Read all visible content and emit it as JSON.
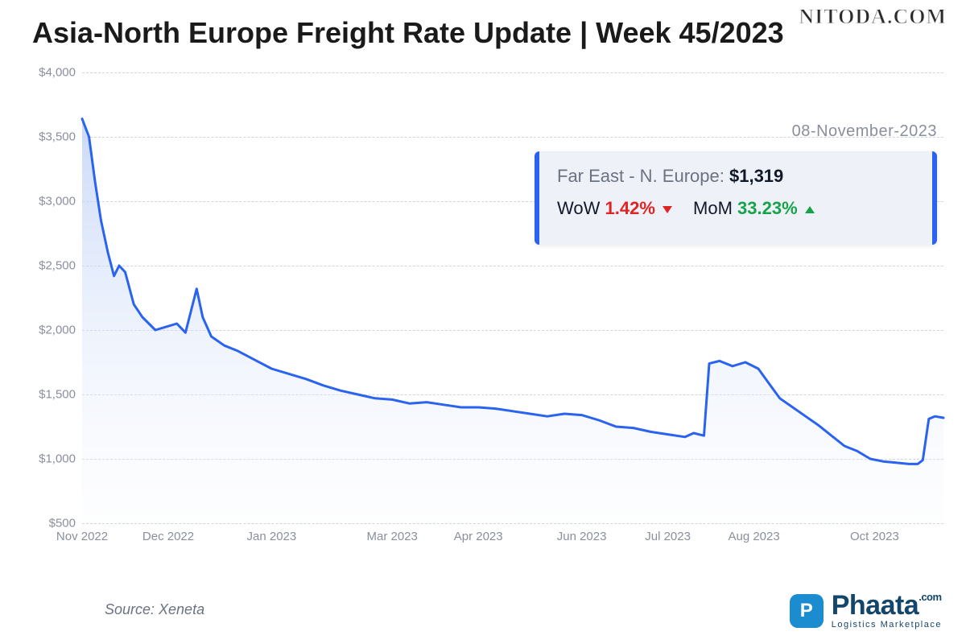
{
  "watermark": "NITODA.COM",
  "title": "Asia-North Europe Freight Rate Update | Week 45/2023",
  "date_label": "08-November-2023",
  "info": {
    "route_label": "Far East - N. Europe:",
    "value": "$1,319",
    "wow_label": "WoW",
    "wow_pct": "1.42%",
    "wow_dir": "down",
    "mom_label": "MoM",
    "mom_pct": "33.23%",
    "mom_dir": "up"
  },
  "source": "Source: Xeneta",
  "brand": {
    "name": "Phaata",
    "dotcom": ".com",
    "tagline": "Logistics Marketplace",
    "logo_letter": "P",
    "logo_bg": "#1a8ccf",
    "text_color": "#14466b"
  },
  "chart": {
    "type": "area",
    "line_color": "#2a63ef",
    "line_width": 3,
    "fill_top_color": "#b9cdf6",
    "fill_bottom_color": "#f3f6fc",
    "fill_opacity": 0.75,
    "background_color": "#ffffff",
    "grid_color": "#cfd4dd",
    "grid_dash": "4 4",
    "axis_text_color": "#8a8f9c",
    "axis_fontsize": 15,
    "ylim": [
      500,
      4000
    ],
    "yticks": [
      500,
      1000,
      1500,
      2000,
      2500,
      3000,
      3500,
      4000
    ],
    "ytick_labels": [
      "$500",
      "$1,000",
      "$1,500",
      "$2,000",
      "$2,500",
      "$3,000",
      "$3,500",
      "$4,000"
    ],
    "xlim": [
      0,
      100
    ],
    "xticks": [
      0,
      10,
      22,
      36,
      46,
      58,
      68,
      78,
      92
    ],
    "xtick_labels": [
      "Nov 2022",
      "Dec 2022",
      "Jan 2023",
      "Mar 2023",
      "Apr 2023",
      "Jun 2023",
      "Jul 2023",
      "Aug 2023",
      "Oct 2023"
    ],
    "series": [
      [
        0,
        3640
      ],
      [
        0.8,
        3500
      ],
      [
        1.5,
        3150
      ],
      [
        2.2,
        2850
      ],
      [
        3,
        2600
      ],
      [
        3.7,
        2420
      ],
      [
        4.3,
        2500
      ],
      [
        5,
        2450
      ],
      [
        6,
        2200
      ],
      [
        7,
        2100
      ],
      [
        8.5,
        2000
      ],
      [
        10,
        2030
      ],
      [
        11,
        2050
      ],
      [
        12,
        1980
      ],
      [
        13.3,
        2320
      ],
      [
        14,
        2100
      ],
      [
        15,
        1950
      ],
      [
        16.5,
        1880
      ],
      [
        18,
        1840
      ],
      [
        20,
        1770
      ],
      [
        22,
        1700
      ],
      [
        24,
        1660
      ],
      [
        26,
        1620
      ],
      [
        28,
        1570
      ],
      [
        30,
        1530
      ],
      [
        32,
        1500
      ],
      [
        34,
        1470
      ],
      [
        36,
        1460
      ],
      [
        38,
        1430
      ],
      [
        40,
        1440
      ],
      [
        42,
        1420
      ],
      [
        44,
        1400
      ],
      [
        46,
        1400
      ],
      [
        48,
        1390
      ],
      [
        50,
        1370
      ],
      [
        52,
        1350
      ],
      [
        54,
        1330
      ],
      [
        56,
        1350
      ],
      [
        58,
        1340
      ],
      [
        60,
        1300
      ],
      [
        62,
        1250
      ],
      [
        64,
        1240
      ],
      [
        66,
        1210
      ],
      [
        68,
        1190
      ],
      [
        70,
        1170
      ],
      [
        71,
        1200
      ],
      [
        72.2,
        1180
      ],
      [
        72.8,
        1740
      ],
      [
        74,
        1760
      ],
      [
        75.5,
        1720
      ],
      [
        77,
        1750
      ],
      [
        78.5,
        1700
      ],
      [
        79.8,
        1580
      ],
      [
        81,
        1470
      ],
      [
        82.5,
        1400
      ],
      [
        84,
        1330
      ],
      [
        85.5,
        1260
      ],
      [
        87,
        1180
      ],
      [
        88.5,
        1100
      ],
      [
        90,
        1060
      ],
      [
        91.5,
        1000
      ],
      [
        93,
        980
      ],
      [
        94.5,
        970
      ],
      [
        96,
        960
      ],
      [
        97,
        960
      ],
      [
        97.6,
        990
      ],
      [
        98.3,
        1310
      ],
      [
        99,
        1330
      ],
      [
        100,
        1319
      ]
    ]
  }
}
